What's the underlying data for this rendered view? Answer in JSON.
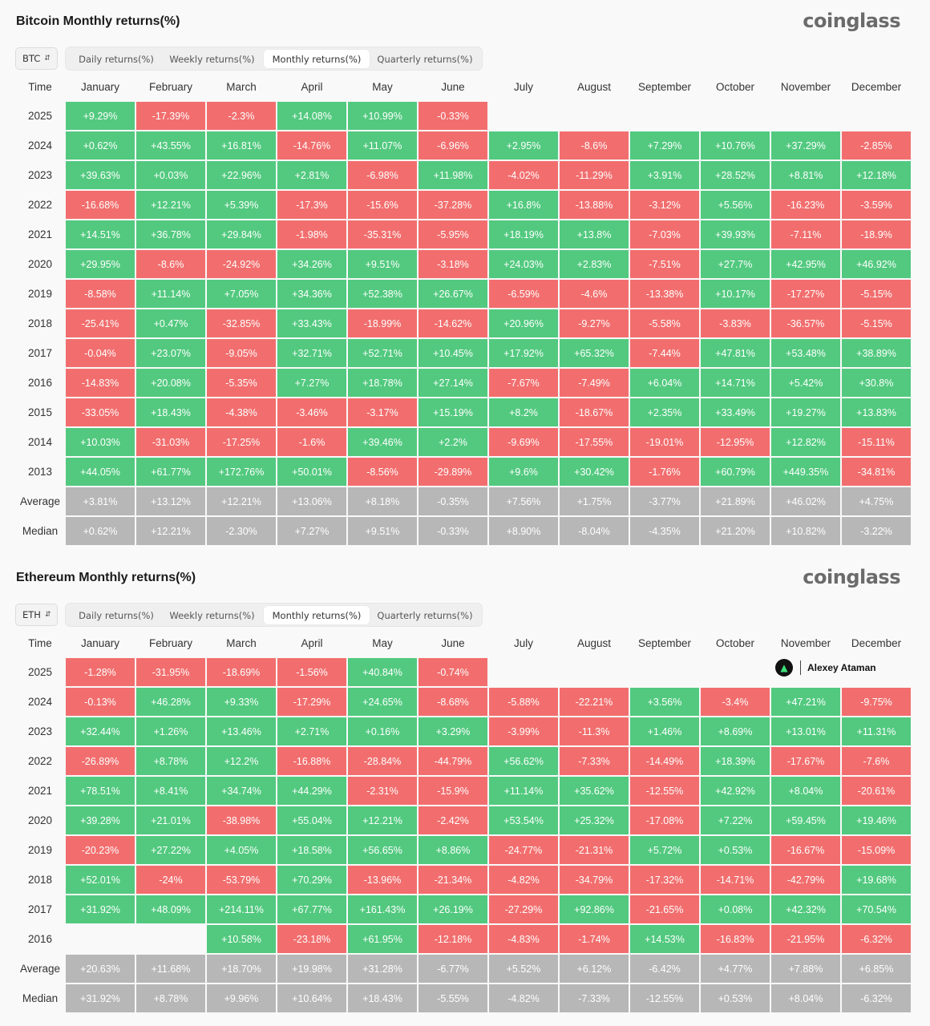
{
  "colors": {
    "positive": "#52c97f",
    "negative": "#f26e6e",
    "summary": "#b7b7b7",
    "brand": "#6b6b6b"
  },
  "brand_name": "coinglass",
  "tabs": [
    "Daily returns(%)",
    "Weekly returns(%)",
    "Monthly returns(%)",
    "Quarterly returns(%)"
  ],
  "header": {
    "time": "Time",
    "months": [
      "January",
      "February",
      "March",
      "April",
      "May",
      "June",
      "July",
      "August",
      "September",
      "October",
      "November",
      "December"
    ]
  },
  "btc": {
    "title": "Bitcoin Monthly returns(%)",
    "asset": "BTC",
    "rows": [
      {
        "label": "2025",
        "cells": [
          "+9.29%",
          "-17.39%",
          "-2.3%",
          "+14.08%",
          "+10.99%",
          "-0.33%",
          "",
          "",
          "",
          "",
          "",
          ""
        ]
      },
      {
        "label": "2024",
        "cells": [
          "+0.62%",
          "+43.55%",
          "+16.81%",
          "-14.76%",
          "+11.07%",
          "-6.96%",
          "+2.95%",
          "-8.6%",
          "+7.29%",
          "+10.76%",
          "+37.29%",
          "-2.85%"
        ]
      },
      {
        "label": "2023",
        "cells": [
          "+39.63%",
          "+0.03%",
          "+22.96%",
          "+2.81%",
          "-6.98%",
          "+11.98%",
          "-4.02%",
          "-11.29%",
          "+3.91%",
          "+28.52%",
          "+8.81%",
          "+12.18%"
        ]
      },
      {
        "label": "2022",
        "cells": [
          "-16.68%",
          "+12.21%",
          "+5.39%",
          "-17.3%",
          "-15.6%",
          "-37.28%",
          "+16.8%",
          "-13.88%",
          "-3.12%",
          "+5.56%",
          "-16.23%",
          "-3.59%"
        ]
      },
      {
        "label": "2021",
        "cells": [
          "+14.51%",
          "+36.78%",
          "+29.84%",
          "-1.98%",
          "-35.31%",
          "-5.95%",
          "+18.19%",
          "+13.8%",
          "-7.03%",
          "+39.93%",
          "-7.11%",
          "-18.9%"
        ]
      },
      {
        "label": "2020",
        "cells": [
          "+29.95%",
          "-8.6%",
          "-24.92%",
          "+34.26%",
          "+9.51%",
          "-3.18%",
          "+24.03%",
          "+2.83%",
          "-7.51%",
          "+27.7%",
          "+42.95%",
          "+46.92%"
        ]
      },
      {
        "label": "2019",
        "cells": [
          "-8.58%",
          "+11.14%",
          "+7.05%",
          "+34.36%",
          "+52.38%",
          "+26.67%",
          "-6.59%",
          "-4.6%",
          "-13.38%",
          "+10.17%",
          "-17.27%",
          "-5.15%"
        ]
      },
      {
        "label": "2018",
        "cells": [
          "-25.41%",
          "+0.47%",
          "-32.85%",
          "+33.43%",
          "-18.99%",
          "-14.62%",
          "+20.96%",
          "-9.27%",
          "-5.58%",
          "-3.83%",
          "-36.57%",
          "-5.15%"
        ]
      },
      {
        "label": "2017",
        "cells": [
          "-0.04%",
          "+23.07%",
          "-9.05%",
          "+32.71%",
          "+52.71%",
          "+10.45%",
          "+17.92%",
          "+65.32%",
          "-7.44%",
          "+47.81%",
          "+53.48%",
          "+38.89%"
        ]
      },
      {
        "label": "2016",
        "cells": [
          "-14.83%",
          "+20.08%",
          "-5.35%",
          "+7.27%",
          "+18.78%",
          "+27.14%",
          "-7.67%",
          "-7.49%",
          "+6.04%",
          "+14.71%",
          "+5.42%",
          "+30.8%"
        ]
      },
      {
        "label": "2015",
        "cells": [
          "-33.05%",
          "+18.43%",
          "-4.38%",
          "-3.46%",
          "-3.17%",
          "+15.19%",
          "+8.2%",
          "-18.67%",
          "+2.35%",
          "+33.49%",
          "+19.27%",
          "+13.83%"
        ]
      },
      {
        "label": "2014",
        "cells": [
          "+10.03%",
          "-31.03%",
          "-17.25%",
          "-1.6%",
          "+39.46%",
          "+2.2%",
          "-9.69%",
          "-17.55%",
          "-19.01%",
          "-12.95%",
          "+12.82%",
          "-15.11%"
        ]
      },
      {
        "label": "2013",
        "cells": [
          "+44.05%",
          "+61.77%",
          "+172.76%",
          "+50.01%",
          "-8.56%",
          "-29.89%",
          "+9.6%",
          "+30.42%",
          "-1.76%",
          "+60.79%",
          "+449.35%",
          "-34.81%"
        ]
      },
      {
        "label": "Average",
        "summary": true,
        "cells": [
          "+3.81%",
          "+13.12%",
          "+12.21%",
          "+13.06%",
          "+8.18%",
          "-0.35%",
          "+7.56%",
          "+1.75%",
          "-3.77%",
          "+21.89%",
          "+46.02%",
          "+4.75%"
        ]
      },
      {
        "label": "Median",
        "summary": true,
        "cells": [
          "+0.62%",
          "+12.21%",
          "-2.30%",
          "+7.27%",
          "+9.51%",
          "-0.33%",
          "+8.90%",
          "-8.04%",
          "-4.35%",
          "+21.20%",
          "+10.82%",
          "-3.22%"
        ]
      }
    ]
  },
  "eth": {
    "title": "Ethereum Monthly returns(%)",
    "asset": "ETH",
    "watermark": "Alexey Ataman",
    "rows": [
      {
        "label": "2025",
        "cells": [
          "-1.28%",
          "-31.95%",
          "-18.69%",
          "-1.56%",
          "+40.84%",
          "-0.74%",
          "",
          "",
          "",
          "",
          "",
          ""
        ]
      },
      {
        "label": "2024",
        "cells": [
          "-0.13%",
          "+46.28%",
          "+9.33%",
          "-17.29%",
          "+24.65%",
          "-8.68%",
          "-5.88%",
          "-22.21%",
          "+3.56%",
          "-3.4%",
          "+47.21%",
          "-9.75%"
        ]
      },
      {
        "label": "2023",
        "cells": [
          "+32.44%",
          "+1.26%",
          "+13.46%",
          "+2.71%",
          "+0.16%",
          "+3.29%",
          "-3.99%",
          "-11.3%",
          "+1.46%",
          "+8.69%",
          "+13.01%",
          "+11.31%"
        ]
      },
      {
        "label": "2022",
        "cells": [
          "-26.89%",
          "+8.78%",
          "+12.2%",
          "-16.88%",
          "-28.84%",
          "-44.79%",
          "+56.62%",
          "-7.33%",
          "-14.49%",
          "+18.39%",
          "-17.67%",
          "-7.6%"
        ]
      },
      {
        "label": "2021",
        "cells": [
          "+78.51%",
          "+8.41%",
          "+34.74%",
          "+44.29%",
          "-2.31%",
          "-15.9%",
          "+11.14%",
          "+35.62%",
          "-12.55%",
          "+42.92%",
          "+8.04%",
          "-20.61%"
        ]
      },
      {
        "label": "2020",
        "cells": [
          "+39.28%",
          "+21.01%",
          "-38.98%",
          "+55.04%",
          "+12.21%",
          "-2.42%",
          "+53.54%",
          "+25.32%",
          "-17.08%",
          "+7.22%",
          "+59.45%",
          "+19.46%"
        ]
      },
      {
        "label": "2019",
        "cells": [
          "-20.23%",
          "+27.22%",
          "+4.05%",
          "+18.58%",
          "+56.65%",
          "+8.86%",
          "-24.77%",
          "-21.31%",
          "+5.72%",
          "+0.53%",
          "-16.67%",
          "-15.09%"
        ]
      },
      {
        "label": "2018",
        "cells": [
          "+52.01%",
          "-24%",
          "-53.79%",
          "+70.29%",
          "-13.96%",
          "-21.34%",
          "-4.82%",
          "-34.79%",
          "-17.32%",
          "-14.71%",
          "-42.79%",
          "+19.68%"
        ]
      },
      {
        "label": "2017",
        "cells": [
          "+31.92%",
          "+48.09%",
          "+214.11%",
          "+67.77%",
          "+161.43%",
          "+26.19%",
          "-27.29%",
          "+92.86%",
          "-21.65%",
          "+0.08%",
          "+42.32%",
          "+70.54%"
        ]
      },
      {
        "label": "2016",
        "cells": [
          "",
          "",
          "+10.58%",
          "-23.18%",
          "+61.95%",
          "-12.18%",
          "-4.83%",
          "-1.74%",
          "+14.53%",
          "-16.83%",
          "-21.95%",
          "-6.32%"
        ]
      },
      {
        "label": "Average",
        "summary": true,
        "cells": [
          "+20.63%",
          "+11.68%",
          "+18.70%",
          "+19.98%",
          "+31.28%",
          "-6.77%",
          "+5.52%",
          "+6.12%",
          "-6.42%",
          "+4.77%",
          "+7.88%",
          "+6.85%"
        ]
      },
      {
        "label": "Median",
        "summary": true,
        "cells": [
          "+31.92%",
          "+8.78%",
          "+9.96%",
          "+10.64%",
          "+18.43%",
          "-5.55%",
          "-4.82%",
          "-7.33%",
          "-12.55%",
          "+0.53%",
          "+8.04%",
          "-6.32%"
        ]
      }
    ]
  }
}
